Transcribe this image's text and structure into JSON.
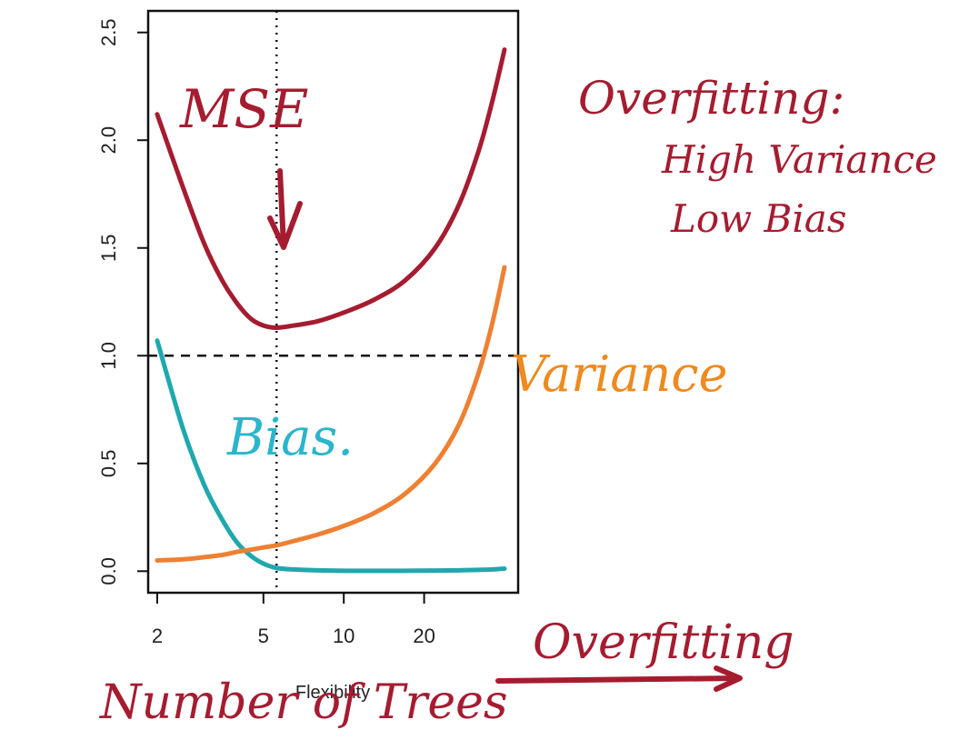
{
  "chart_data": {
    "type": "line",
    "xlabel": "Flexibility",
    "x_scale": "log",
    "xlim": [
      1.85,
      45
    ],
    "ylim": [
      -0.1,
      2.6
    ],
    "x_ticks": [
      "2",
      "5",
      "10",
      "20"
    ],
    "x_tick_values": [
      2,
      5,
      10,
      20
    ],
    "y_ticks": [
      "0.0",
      "0.5",
      "1.0",
      "1.5",
      "2.0",
      "2.5"
    ],
    "y_tick_values": [
      0.0,
      0.5,
      1.0,
      1.5,
      2.0,
      2.5
    ],
    "grid": false,
    "series": [
      {
        "name": "MSE",
        "color": "#a51c30",
        "x": [
          2,
          2.5,
          3,
          3.5,
          4,
          4.5,
          5,
          5.6,
          6.5,
          8,
          10,
          13,
          17,
          22,
          27,
          32,
          36,
          40
        ],
        "y": [
          2.12,
          1.78,
          1.52,
          1.35,
          1.24,
          1.17,
          1.14,
          1.13,
          1.14,
          1.16,
          1.2,
          1.26,
          1.35,
          1.5,
          1.7,
          1.95,
          2.18,
          2.42
        ]
      },
      {
        "name": "Bias",
        "color": "#1fa8ad",
        "x": [
          2,
          2.5,
          3,
          3.5,
          4,
          4.5,
          5,
          5.6,
          6.5,
          8,
          10,
          13,
          17,
          22,
          27,
          32,
          36,
          40
        ],
        "y": [
          1.07,
          0.66,
          0.4,
          0.24,
          0.13,
          0.07,
          0.035,
          0.015,
          0.008,
          0.004,
          0.002,
          0.002,
          0.002,
          0.003,
          0.004,
          0.006,
          0.008,
          0.012
        ]
      },
      {
        "name": "Variance",
        "color": "#ee8033",
        "x": [
          2,
          2.5,
          3,
          3.5,
          4,
          4.5,
          5,
          5.6,
          6.5,
          8,
          10,
          13,
          17,
          22,
          27,
          32,
          36,
          40
        ],
        "y": [
          0.05,
          0.055,
          0.065,
          0.075,
          0.09,
          0.1,
          0.11,
          0.12,
          0.14,
          0.17,
          0.21,
          0.27,
          0.36,
          0.5,
          0.68,
          0.92,
          1.15,
          1.41
        ]
      }
    ],
    "reference_lines": [
      {
        "orientation": "horizontal",
        "y": 1.0,
        "style": "dashed"
      },
      {
        "orientation": "vertical",
        "x": 5.6,
        "style": "dotted"
      }
    ]
  },
  "annotations": {
    "mse": "MSE",
    "bias": "Bias.",
    "variance": "Variance",
    "overfitting_title": "Overfitting:",
    "high_variance": "High Variance",
    "low_bias": "Low Bias",
    "overfitting_arrow": "Overfitting",
    "number_of_trees": "Number of Trees"
  },
  "colors": {
    "annotation_red": "#a51c30",
    "annotation_cyan": "#2bb5cc",
    "annotation_orange": "#ee8a1e"
  }
}
